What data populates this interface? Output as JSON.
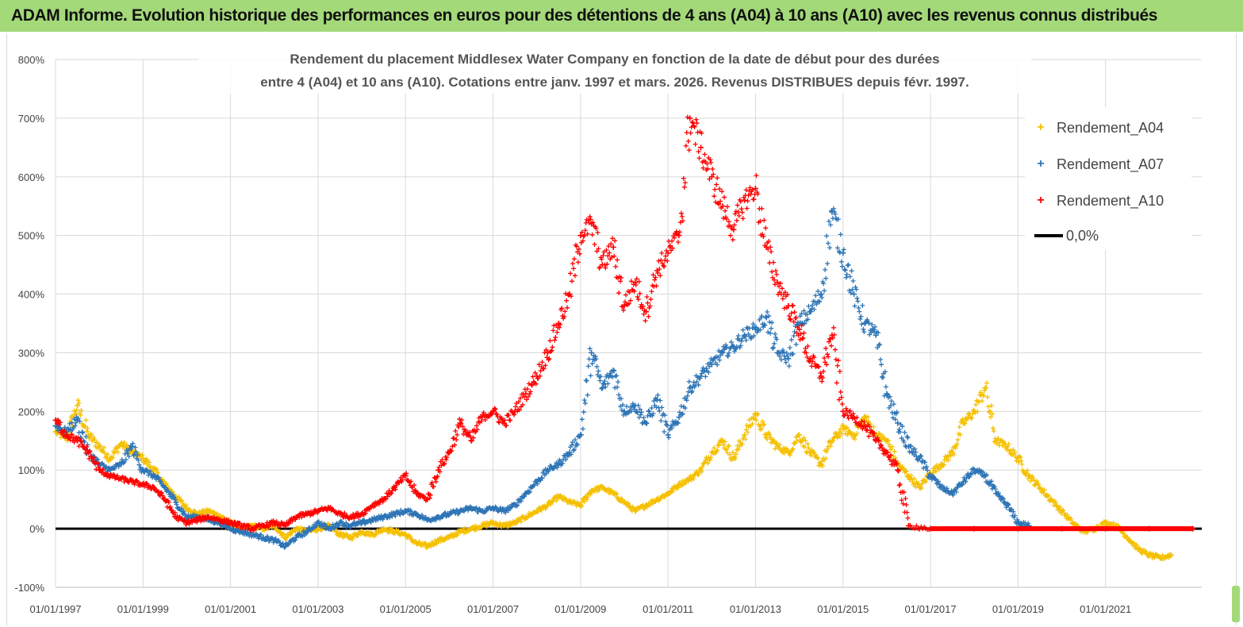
{
  "banner": {
    "title": "ADAM Informe. Evolution historique des performances en euros pour des détentions de 4 ans (A04) à 10 ans (A10) avec les revenus connus distribués"
  },
  "chart_data": {
    "type": "scatter",
    "title_line1": "Rendement du placement Middlesex Water Company en fonction de la date de début pour des durées",
    "title_line2": "entre 4 (A04) et 10 ans (A10).  Cotations entre janv. 1997 et mars. 2026. Revenus DISTRIBUES depuis févr. 1997.",
    "ylim": [
      -100,
      800
    ],
    "y_ticks": [
      "-100%",
      "0%",
      "100%",
      "200%",
      "300%",
      "400%",
      "500%",
      "600%",
      "700%",
      "800%"
    ],
    "x_ticks": [
      "01/01/1997",
      "01/01/1999",
      "01/01/2001",
      "01/01/2003",
      "01/01/2005",
      "01/01/2007",
      "01/01/2009",
      "01/01/2011",
      "01/01/2013",
      "01/01/2015",
      "01/01/2017",
      "01/01/2019",
      "01/01/2021"
    ],
    "xlim": [
      1997.0,
      2023.2
    ],
    "legend_position": "top-right",
    "series": [
      {
        "name": "Rendement_A04",
        "color": "#f5c000",
        "points": [
          [
            1997.0,
            165
          ],
          [
            1997.25,
            155
          ],
          [
            1997.5,
            210
          ],
          [
            1997.75,
            160
          ],
          [
            1998.0,
            140
          ],
          [
            1998.25,
            120
          ],
          [
            1998.5,
            145
          ],
          [
            1998.75,
            130
          ],
          [
            1999.0,
            120
          ],
          [
            1999.25,
            100
          ],
          [
            1999.5,
            75
          ],
          [
            1999.75,
            55
          ],
          [
            2000.0,
            35
          ],
          [
            2000.25,
            25
          ],
          [
            2000.5,
            30
          ],
          [
            2000.75,
            22
          ],
          [
            2001.0,
            10
          ],
          [
            2001.25,
            0
          ],
          [
            2001.5,
            5
          ],
          [
            2001.75,
            0
          ],
          [
            2002.0,
            5
          ],
          [
            2002.25,
            -15
          ],
          [
            2002.5,
            0
          ],
          [
            2002.75,
            -5
          ],
          [
            2003.0,
            0
          ],
          [
            2003.25,
            5
          ],
          [
            2003.5,
            -10
          ],
          [
            2003.75,
            -15
          ],
          [
            2004.0,
            -5
          ],
          [
            2004.25,
            -10
          ],
          [
            2004.5,
            0
          ],
          [
            2004.75,
            -5
          ],
          [
            2005.0,
            -10
          ],
          [
            2005.25,
            -25
          ],
          [
            2005.5,
            -30
          ],
          [
            2005.75,
            -20
          ],
          [
            2006.0,
            -15
          ],
          [
            2006.25,
            -5
          ],
          [
            2006.5,
            0
          ],
          [
            2006.75,
            5
          ],
          [
            2007.0,
            10
          ],
          [
            2007.25,
            5
          ],
          [
            2007.5,
            10
          ],
          [
            2007.75,
            20
          ],
          [
            2008.0,
            30
          ],
          [
            2008.25,
            40
          ],
          [
            2008.5,
            55
          ],
          [
            2008.75,
            45
          ],
          [
            2009.0,
            40
          ],
          [
            2009.25,
            65
          ],
          [
            2009.5,
            70
          ],
          [
            2009.75,
            60
          ],
          [
            2010.0,
            45
          ],
          [
            2010.25,
            30
          ],
          [
            2010.5,
            40
          ],
          [
            2010.75,
            50
          ],
          [
            2011.0,
            60
          ],
          [
            2011.25,
            75
          ],
          [
            2011.5,
            85
          ],
          [
            2011.75,
            100
          ],
          [
            2012.0,
            130
          ],
          [
            2012.25,
            150
          ],
          [
            2012.5,
            120
          ],
          [
            2012.75,
            160
          ],
          [
            2013.0,
            195
          ],
          [
            2013.25,
            160
          ],
          [
            2013.5,
            140
          ],
          [
            2013.75,
            130
          ],
          [
            2014.0,
            160
          ],
          [
            2014.25,
            130
          ],
          [
            2014.5,
            110
          ],
          [
            2014.75,
            150
          ],
          [
            2015.0,
            170
          ],
          [
            2015.25,
            160
          ],
          [
            2015.5,
            190
          ],
          [
            2015.75,
            160
          ],
          [
            2016.0,
            150
          ],
          [
            2016.25,
            110
          ],
          [
            2016.5,
            90
          ],
          [
            2016.75,
            70
          ],
          [
            2017.0,
            95
          ],
          [
            2017.25,
            110
          ],
          [
            2017.5,
            130
          ],
          [
            2017.75,
            180
          ],
          [
            2018.0,
            200
          ],
          [
            2018.25,
            240
          ],
          [
            2018.5,
            150
          ],
          [
            2018.75,
            140
          ],
          [
            2019.0,
            120
          ],
          [
            2019.25,
            90
          ],
          [
            2019.5,
            70
          ],
          [
            2019.75,
            50
          ],
          [
            2020.0,
            30
          ],
          [
            2020.25,
            10
          ],
          [
            2020.5,
            -5
          ],
          [
            2020.75,
            0
          ],
          [
            2021.0,
            10
          ],
          [
            2021.25,
            5
          ],
          [
            2021.5,
            -15
          ],
          [
            2021.75,
            -35
          ],
          [
            2022.0,
            -45
          ],
          [
            2022.25,
            -50
          ],
          [
            2022.5,
            -45
          ]
        ]
      },
      {
        "name": "Rendement_A07",
        "color": "#2e75b6",
        "points": [
          [
            1997.0,
            175
          ],
          [
            1997.25,
            165
          ],
          [
            1997.5,
            185
          ],
          [
            1997.75,
            130
          ],
          [
            1998.0,
            110
          ],
          [
            1998.25,
            100
          ],
          [
            1998.5,
            110
          ],
          [
            1998.75,
            140
          ],
          [
            1999.0,
            100
          ],
          [
            1999.25,
            90
          ],
          [
            1999.5,
            70
          ],
          [
            1999.75,
            45
          ],
          [
            2000.0,
            20
          ],
          [
            2000.25,
            20
          ],
          [
            2000.5,
            15
          ],
          [
            2000.75,
            10
          ],
          [
            2001.0,
            0
          ],
          [
            2001.25,
            -5
          ],
          [
            2001.5,
            -10
          ],
          [
            2001.75,
            -15
          ],
          [
            2002.0,
            -20
          ],
          [
            2002.25,
            -30
          ],
          [
            2002.5,
            -15
          ],
          [
            2002.75,
            -5
          ],
          [
            2003.0,
            10
          ],
          [
            2003.25,
            0
          ],
          [
            2003.5,
            10
          ],
          [
            2003.75,
            5
          ],
          [
            2004.0,
            10
          ],
          [
            2004.25,
            15
          ],
          [
            2004.5,
            20
          ],
          [
            2004.75,
            25
          ],
          [
            2005.0,
            30
          ],
          [
            2005.25,
            25
          ],
          [
            2005.5,
            15
          ],
          [
            2005.75,
            20
          ],
          [
            2006.0,
            25
          ],
          [
            2006.25,
            30
          ],
          [
            2006.5,
            35
          ],
          [
            2006.75,
            30
          ],
          [
            2007.0,
            35
          ],
          [
            2007.25,
            30
          ],
          [
            2007.5,
            40
          ],
          [
            2007.75,
            60
          ],
          [
            2008.0,
            80
          ],
          [
            2008.25,
            100
          ],
          [
            2008.5,
            110
          ],
          [
            2008.75,
            130
          ],
          [
            2009.0,
            160
          ],
          [
            2009.25,
            300
          ],
          [
            2009.5,
            240
          ],
          [
            2009.75,
            270
          ],
          [
            2010.0,
            200
          ],
          [
            2010.25,
            210
          ],
          [
            2010.5,
            180
          ],
          [
            2010.75,
            220
          ],
          [
            2011.0,
            160
          ],
          [
            2011.25,
            190
          ],
          [
            2011.5,
            240
          ],
          [
            2011.75,
            260
          ],
          [
            2012.0,
            280
          ],
          [
            2012.25,
            300
          ],
          [
            2012.5,
            310
          ],
          [
            2012.75,
            330
          ],
          [
            2013.0,
            340
          ],
          [
            2013.25,
            360
          ],
          [
            2013.5,
            300
          ],
          [
            2013.75,
            290
          ],
          [
            2014.0,
            350
          ],
          [
            2014.25,
            370
          ],
          [
            2014.5,
            400
          ],
          [
            2014.75,
            540
          ],
          [
            2015.0,
            470
          ],
          [
            2015.25,
            400
          ],
          [
            2015.5,
            350
          ],
          [
            2015.75,
            330
          ],
          [
            2016.0,
            230
          ],
          [
            2016.25,
            180
          ],
          [
            2016.5,
            140
          ],
          [
            2016.75,
            120
          ],
          [
            2017.0,
            90
          ],
          [
            2017.25,
            70
          ],
          [
            2017.5,
            60
          ],
          [
            2017.75,
            80
          ],
          [
            2018.0,
            100
          ],
          [
            2018.25,
            90
          ],
          [
            2018.5,
            60
          ],
          [
            2018.75,
            40
          ],
          [
            2019.0,
            10
          ],
          [
            2019.25,
            5
          ]
        ]
      },
      {
        "name": "Rendement_A10",
        "color": "#ff0000",
        "points": [
          [
            1997.0,
            185
          ],
          [
            1997.25,
            160
          ],
          [
            1997.5,
            150
          ],
          [
            1997.75,
            130
          ],
          [
            1998.0,
            100
          ],
          [
            1998.25,
            90
          ],
          [
            1998.5,
            85
          ],
          [
            1998.75,
            80
          ],
          [
            1999.0,
            75
          ],
          [
            1999.25,
            70
          ],
          [
            1999.5,
            50
          ],
          [
            1999.75,
            20
          ],
          [
            2000.0,
            10
          ],
          [
            2000.25,
            15
          ],
          [
            2000.5,
            20
          ],
          [
            2000.75,
            15
          ],
          [
            2001.0,
            10
          ],
          [
            2001.25,
            5
          ],
          [
            2001.5,
            0
          ],
          [
            2001.75,
            5
          ],
          [
            2002.0,
            10
          ],
          [
            2002.25,
            5
          ],
          [
            2002.5,
            20
          ],
          [
            2002.75,
            25
          ],
          [
            2003.0,
            30
          ],
          [
            2003.25,
            35
          ],
          [
            2003.5,
            25
          ],
          [
            2003.75,
            20
          ],
          [
            2004.0,
            25
          ],
          [
            2004.25,
            40
          ],
          [
            2004.5,
            50
          ],
          [
            2004.75,
            70
          ],
          [
            2005.0,
            90
          ],
          [
            2005.25,
            60
          ],
          [
            2005.5,
            50
          ],
          [
            2005.75,
            100
          ],
          [
            2006.0,
            130
          ],
          [
            2006.25,
            180
          ],
          [
            2006.5,
            150
          ],
          [
            2006.75,
            190
          ],
          [
            2007.0,
            200
          ],
          [
            2007.25,
            180
          ],
          [
            2007.5,
            200
          ],
          [
            2007.75,
            230
          ],
          [
            2008.0,
            260
          ],
          [
            2008.25,
            300
          ],
          [
            2008.5,
            350
          ],
          [
            2008.75,
            400
          ],
          [
            2009.0,
            500
          ],
          [
            2009.25,
            520
          ],
          [
            2009.5,
            450
          ],
          [
            2009.75,
            480
          ],
          [
            2010.0,
            380
          ],
          [
            2010.25,
            420
          ],
          [
            2010.5,
            370
          ],
          [
            2010.75,
            440
          ],
          [
            2011.0,
            470
          ],
          [
            2011.25,
            500
          ],
          [
            2011.5,
            700
          ],
          [
            2011.75,
            650
          ],
          [
            2012.0,
            600
          ],
          [
            2012.25,
            550
          ],
          [
            2012.5,
            510
          ],
          [
            2012.75,
            560
          ],
          [
            2013.0,
            580
          ],
          [
            2013.25,
            480
          ],
          [
            2013.5,
            420
          ],
          [
            2013.75,
            380
          ],
          [
            2014.0,
            340
          ],
          [
            2014.25,
            290
          ],
          [
            2014.5,
            260
          ],
          [
            2014.75,
            330
          ],
          [
            2015.0,
            200
          ],
          [
            2015.25,
            190
          ],
          [
            2015.5,
            175
          ],
          [
            2015.75,
            150
          ],
          [
            2016.0,
            130
          ],
          [
            2016.25,
            100
          ],
          [
            2016.5,
            5
          ],
          [
            2017.0,
            0
          ],
          [
            2018.0,
            0
          ],
          [
            2019.0,
            0
          ],
          [
            2020.0,
            0
          ],
          [
            2021.0,
            0
          ],
          [
            2022.0,
            0
          ],
          [
            2023.0,
            0
          ]
        ]
      },
      {
        "name": "0,0%",
        "color": "#000000",
        "points": [
          [
            1997.0,
            0
          ],
          [
            2023.2,
            0
          ]
        ]
      }
    ]
  }
}
